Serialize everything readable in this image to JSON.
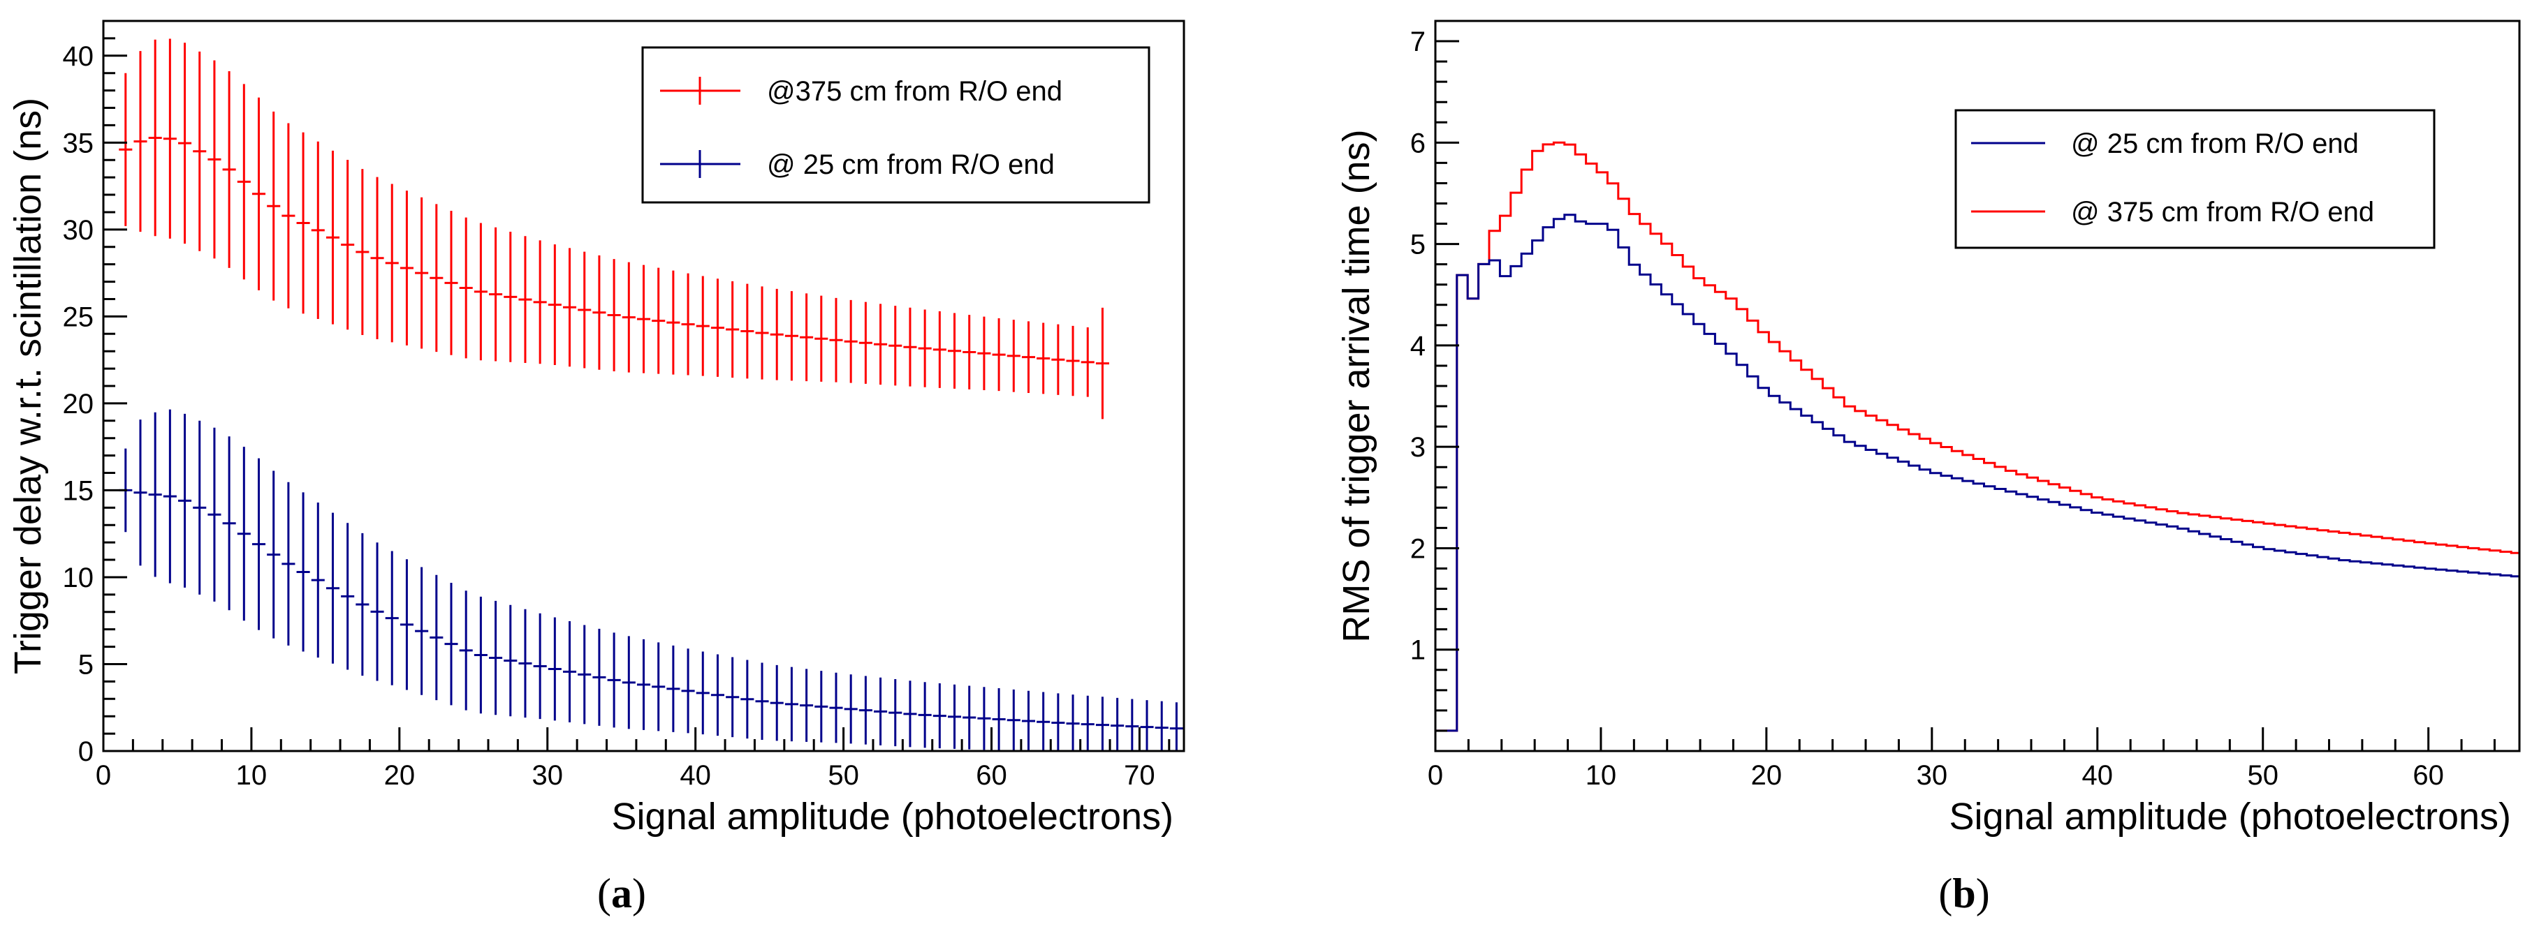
{
  "chart_data": [
    {
      "type": "line",
      "panel": "a",
      "caption": {
        "open": "(",
        "letter": "a",
        "close": ")"
      },
      "xlabel": "Signal amplitude (photoelectrons)",
      "ylabel": "Trigger delay w.r.t. scintillation (ns)",
      "xlim": [
        0,
        73
      ],
      "ylim": [
        0,
        42
      ],
      "xticks": [
        0,
        10,
        20,
        30,
        40,
        50,
        60,
        70
      ],
      "yticks": [
        0,
        5,
        10,
        15,
        20,
        25,
        30,
        35,
        40
      ],
      "legend": {
        "location": "top-right",
        "entries": [
          {
            "label": "@375 cm from R/O end",
            "color": "#ff0000"
          },
          {
            "label": "@ 25 cm from R/O end",
            "color": "#00008b"
          }
        ]
      },
      "series": [
        {
          "name": "@375 cm from R/O end",
          "color": "#ff0000",
          "x_range": [
            1.5,
            67.5
          ],
          "mean_anchors": [
            [
              1.5,
              34.6
            ],
            [
              3,
              35.3
            ],
            [
              5,
              35.2
            ],
            [
              8,
              33.8
            ],
            [
              12,
              31.0
            ],
            [
              18,
              28.5
            ],
            [
              25,
              26.5
            ],
            [
              35,
              25.0
            ],
            [
              45,
              24.0
            ],
            [
              55,
              23.2
            ],
            [
              67.5,
              22.3
            ]
          ],
          "halfwidth_anchors": [
            [
              1.5,
              4.4
            ],
            [
              3,
              5.6
            ],
            [
              5,
              5.8
            ],
            [
              10,
              5.6
            ],
            [
              20,
              4.5
            ],
            [
              30,
              3.5
            ],
            [
              40,
              2.9
            ],
            [
              50,
              2.4
            ],
            [
              60,
              2.1
            ],
            [
              66.5,
              2.0
            ],
            [
              67.5,
              3.2
            ]
          ]
        },
        {
          "name": "@ 25 cm from R/O end",
          "color": "#00008b",
          "x_range": [
            1.5,
            72.5
          ],
          "mean_anchors": [
            [
              1.5,
              15.0
            ],
            [
              3,
              14.8
            ],
            [
              5,
              14.6
            ],
            [
              8,
              13.4
            ],
            [
              12,
              11.0
            ],
            [
              18,
              8.2
            ],
            [
              25,
              5.6
            ],
            [
              35,
              4.0
            ],
            [
              45,
              2.8
            ],
            [
              55,
              2.1
            ],
            [
              65,
              1.6
            ],
            [
              72.5,
              1.3
            ]
          ],
          "halfwidth_anchors": [
            [
              1.5,
              2.4
            ],
            [
              2.5,
              4.2
            ],
            [
              4,
              5.0
            ],
            [
              10,
              5.0
            ],
            [
              20,
              3.8
            ],
            [
              30,
              3.0
            ],
            [
              40,
              2.4
            ],
            [
              50,
              2.0
            ],
            [
              60,
              1.8
            ],
            [
              72.5,
              1.5
            ]
          ]
        }
      ]
    },
    {
      "type": "line",
      "panel": "b",
      "caption": {
        "open": "(",
        "letter": "b",
        "close": ")"
      },
      "xlabel": "Signal amplitude (photoelectrons)",
      "ylabel": "RMS of trigger arrival time (ns)",
      "xlim": [
        0,
        65.5
      ],
      "ylim": [
        0,
        7.2
      ],
      "xticks": [
        0,
        10,
        20,
        30,
        40,
        50,
        60
      ],
      "yticks": [
        1,
        2,
        3,
        4,
        5,
        6,
        7
      ],
      "legend": {
        "location": "top-right",
        "entries": [
          {
            "label": "@ 25 cm from R/O end",
            "color": "#00008b"
          },
          {
            "label": "@ 375 cm from R/O end",
            "color": "#ff0000"
          }
        ]
      },
      "series": [
        {
          "name": "@ 25 cm from R/O end",
          "color": "#00008b",
          "bin_width": 0.65,
          "x_start": 0,
          "anchors": [
            [
              0,
              0.2
            ],
            [
              1.2,
              0.2
            ],
            [
              1.3,
              2.0
            ],
            [
              1.5,
              4.6
            ],
            [
              1.9,
              4.9
            ],
            [
              2.5,
              4.2
            ],
            [
              3.1,
              5.05
            ],
            [
              4.0,
              4.65
            ],
            [
              5.0,
              4.8
            ],
            [
              6.0,
              5.0
            ],
            [
              7.0,
              5.2
            ],
            [
              8.0,
              5.3
            ],
            [
              9.0,
              5.2
            ],
            [
              10.5,
              5.2
            ],
            [
              12.0,
              4.8
            ],
            [
              14.0,
              4.5
            ],
            [
              16.0,
              4.2
            ],
            [
              18.0,
              3.9
            ],
            [
              20.0,
              3.55
            ],
            [
              25.0,
              3.05
            ],
            [
              30.0,
              2.75
            ],
            [
              35.0,
              2.55
            ],
            [
              40.0,
              2.35
            ],
            [
              45.0,
              2.2
            ],
            [
              50.0,
              2.0
            ],
            [
              55.0,
              1.88
            ],
            [
              60.0,
              1.8
            ],
            [
              65.5,
              1.72
            ]
          ]
        },
        {
          "name": "@ 375 cm from R/O end",
          "color": "#ff0000",
          "bin_width": 0.65,
          "x_start": 0,
          "anchors": [
            [
              0,
              0.2
            ],
            [
              1.2,
              0.2
            ],
            [
              1.3,
              2.0
            ],
            [
              1.5,
              4.6
            ],
            [
              1.9,
              4.9
            ],
            [
              2.5,
              4.2
            ],
            [
              3.1,
              5.05
            ],
            [
              4.0,
              5.2
            ],
            [
              5.0,
              5.55
            ],
            [
              6.0,
              5.9
            ],
            [
              7.0,
              6.0
            ],
            [
              8.0,
              6.0
            ],
            [
              9.0,
              5.85
            ],
            [
              10.5,
              5.65
            ],
            [
              12.0,
              5.3
            ],
            [
              14.0,
              5.0
            ],
            [
              16.0,
              4.65
            ],
            [
              18.0,
              4.45
            ],
            [
              20.0,
              4.1
            ],
            [
              25.0,
              3.4
            ],
            [
              30.0,
              3.05
            ],
            [
              35.0,
              2.75
            ],
            [
              40.0,
              2.5
            ],
            [
              45.0,
              2.35
            ],
            [
              50.0,
              2.25
            ],
            [
              55.0,
              2.15
            ],
            [
              60.0,
              2.05
            ],
            [
              65.5,
              1.95
            ]
          ]
        }
      ]
    }
  ]
}
